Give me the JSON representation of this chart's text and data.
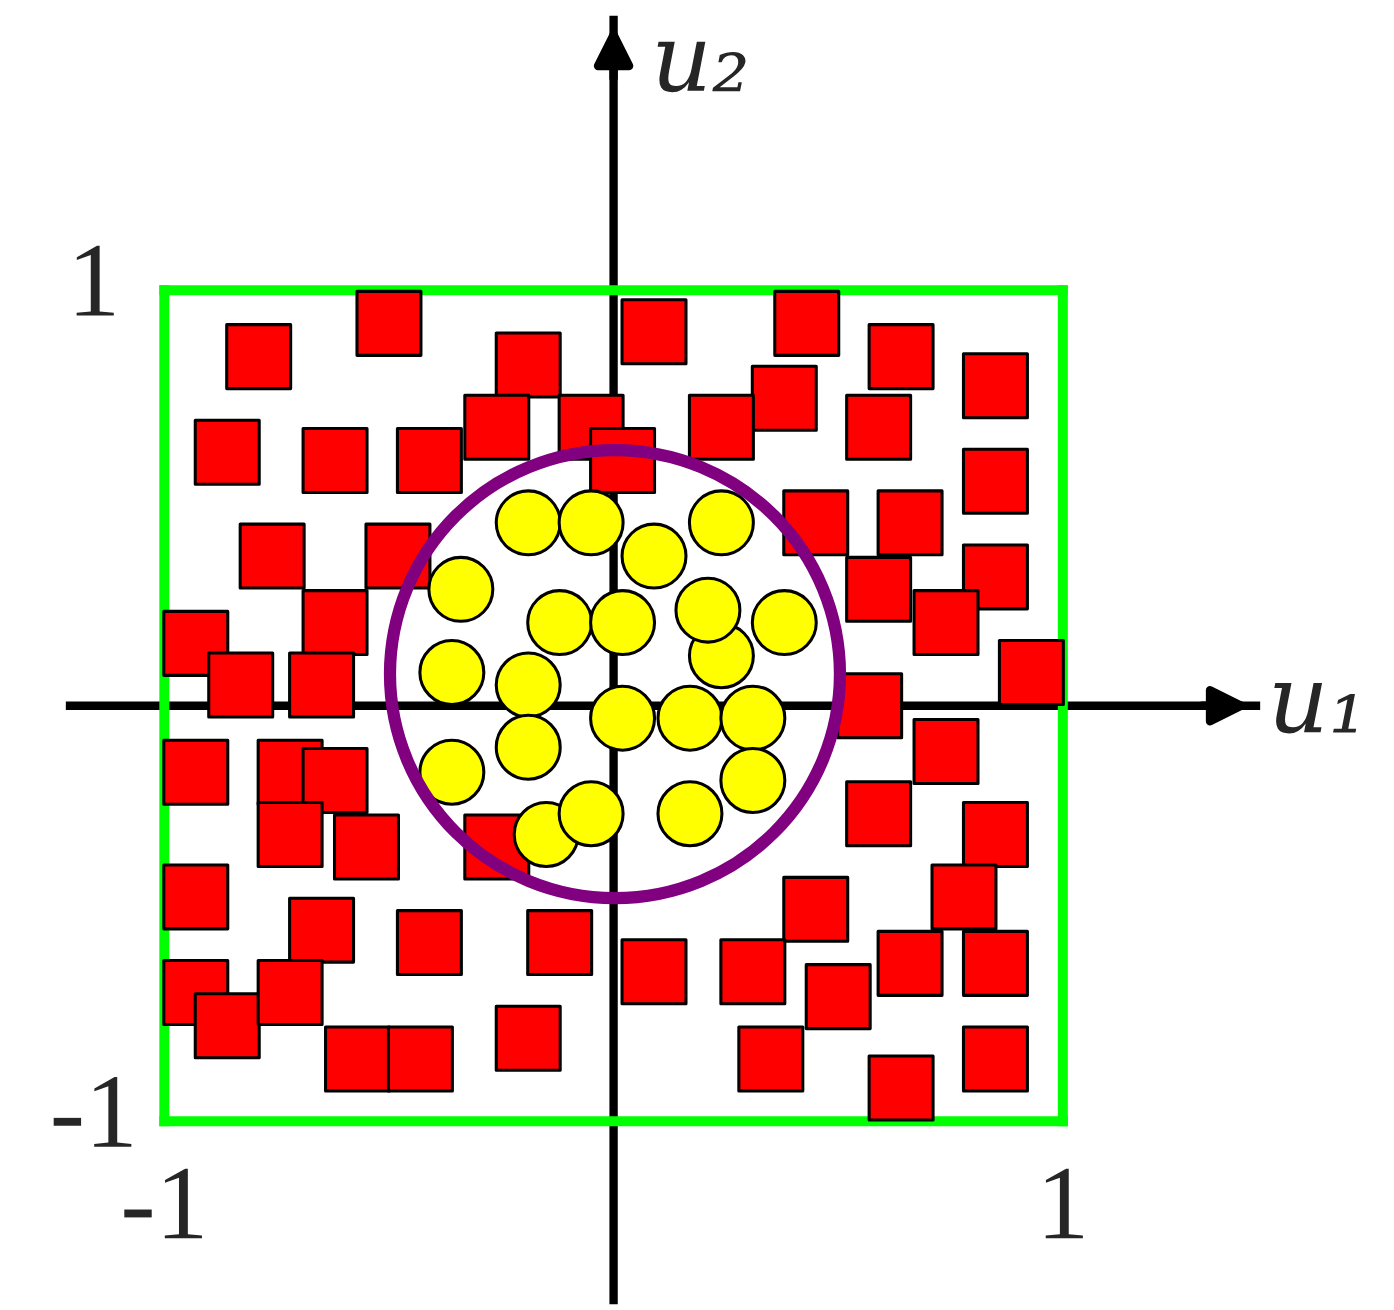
{
  "chart_data": {
    "type": "scatter",
    "xlabel": "u₁",
    "ylabel": "u₂",
    "xlim": [
      -1.21,
      1.43
    ],
    "ylim": [
      -1.43,
      1.65
    ],
    "xticks": [
      -1,
      1
    ],
    "yticks": [
      -1,
      1
    ],
    "series": [
      {
        "type": "line",
        "color": "#00ff00",
        "marker": "none",
        "x": [
          -1,
          1
        ],
        "values": [
          1,
          1
        ]
      },
      {
        "type": "line",
        "color": "#00ff00",
        "marker": "none",
        "x": [
          -1,
          1
        ],
        "values": [
          -1,
          -1
        ]
      },
      {
        "type": "line",
        "color": "#00ff00",
        "marker": "none",
        "x": [
          -1,
          -1
        ],
        "values": [
          -1,
          1
        ]
      },
      {
        "type": "line",
        "color": "#00ff00",
        "marker": "none",
        "x": [
          1,
          1
        ],
        "values": [
          -1,
          1
        ]
      },
      {
        "color": "#ff0000",
        "marker": "square",
        "x": [
          -0.79,
          -0.5,
          -0.19,
          -0.86,
          -0.62,
          -0.41,
          -0.26,
          -0.05,
          0.02,
          -0.76,
          -0.48,
          -0.62,
          -0.93,
          -0.83,
          -0.65,
          0.09,
          0.43,
          0.64,
          0.85,
          0.38,
          0.24,
          0.59,
          0.85,
          0.45,
          0.66,
          0.59,
          0.85,
          0.74,
          0.93,
          0.57,
          0.74,
          0.59,
          0.85,
          0.45,
          0.78,
          0.09,
          0.31,
          0.66,
          0.85,
          0.5,
          0.35,
          0.85,
          0.64,
          -0.93,
          -0.72,
          -0.62,
          -0.72,
          -0.55,
          -0.26,
          -0.93,
          -0.65,
          -0.41,
          -0.12,
          -0.93,
          -0.86,
          -0.72,
          -0.57,
          -0.43,
          -0.19
        ],
        "values": [
          0.84,
          0.92,
          0.82,
          0.61,
          0.59,
          0.59,
          0.67,
          0.67,
          0.59,
          0.36,
          0.36,
          0.2,
          0.15,
          0.05,
          0.05,
          0.9,
          0.92,
          0.84,
          0.77,
          0.74,
          0.67,
          0.67,
          0.54,
          0.44,
          0.44,
          0.28,
          0.31,
          0.2,
          0.08,
          0.0,
          -0.11,
          -0.26,
          -0.31,
          -0.49,
          -0.46,
          -0.64,
          -0.64,
          -0.62,
          -0.62,
          -0.7,
          -0.85,
          -0.85,
          -0.92,
          -0.16,
          -0.16,
          -0.18,
          -0.31,
          -0.34,
          -0.34,
          -0.46,
          -0.54,
          -0.57,
          -0.57,
          -0.69,
          -0.77,
          -0.69,
          -0.85,
          -0.85,
          -0.8
        ]
      },
      {
        "color": "#ffff00",
        "marker": "circle",
        "x": [
          -0.19,
          -0.05,
          0.09,
          0.24,
          -0.34,
          -0.12,
          0.02,
          0.24,
          0.21,
          0.38,
          -0.36,
          -0.19,
          0.02,
          0.17,
          0.31,
          -0.19,
          -0.36,
          0.31,
          -0.15,
          -0.05,
          0.17
        ],
        "values": [
          0.44,
          0.44,
          0.36,
          0.44,
          0.28,
          0.2,
          0.2,
          0.12,
          0.23,
          0.2,
          0.08,
          0.05,
          -0.03,
          -0.03,
          -0.03,
          -0.1,
          -0.16,
          -0.18,
          -0.31,
          -0.26,
          -0.26
        ]
      }
    ]
  }
}
